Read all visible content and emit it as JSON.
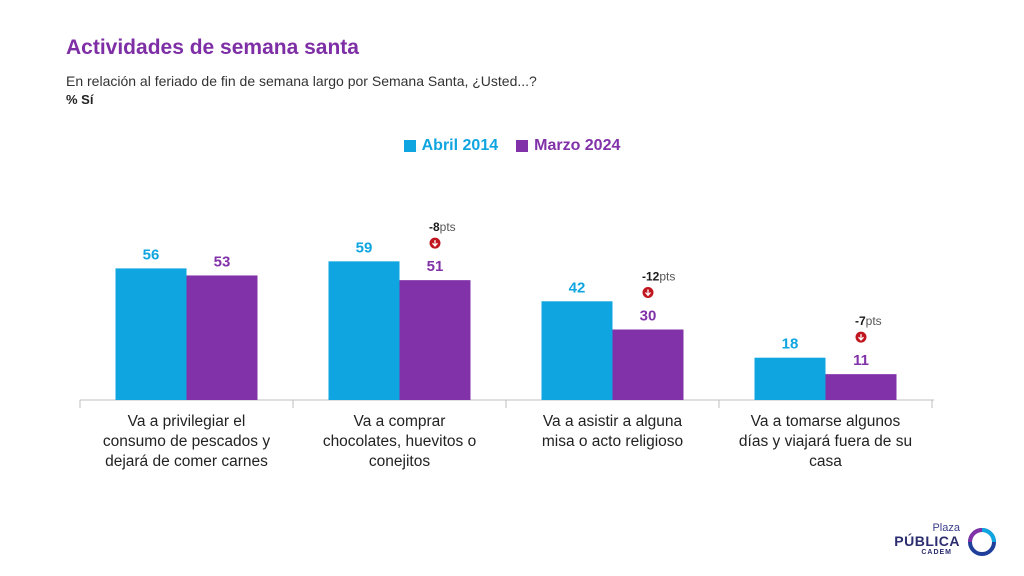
{
  "header": {
    "title": "Actividades de semana santa",
    "subtitle": "En relación al feriado de fin de semana largo por Semana Santa, ¿Usted...?",
    "metric": "% Sí"
  },
  "colors": {
    "series1": "#0ea5e0",
    "series2": "#8132a8",
    "title": "#7e2fa6",
    "delta": "#c0161f"
  },
  "chart_data": {
    "type": "bar",
    "categories": [
      [
        "Va a privilegiar el",
        "consumo de pescados y",
        "dejará de comer carnes"
      ],
      [
        "Va a comprar",
        "chocolates, huevitos o",
        "conejitos"
      ],
      [
        "Va a asistir a alguna",
        "misa o acto religioso"
      ],
      [
        "Va a tomarse algunos",
        "días y viajará fuera de su",
        "casa"
      ]
    ],
    "series": [
      {
        "name": "Abril 2014",
        "values": [
          56,
          59,
          42,
          18
        ]
      },
      {
        "name": "Marzo 2024",
        "values": [
          53,
          51,
          30,
          11
        ]
      }
    ],
    "annotations": [
      {
        "category_index": 1,
        "value": "-8",
        "unit": "pts"
      },
      {
        "category_index": 2,
        "value": "-12",
        "unit": "pts"
      },
      {
        "category_index": 3,
        "value": "-7",
        "unit": "pts"
      }
    ],
    "ylim": [
      0,
      100
    ],
    "grid": false,
    "legend": "top-center"
  },
  "logo": {
    "top": "Plaza",
    "middle": "PÚBLICA",
    "bottom": "CADEM"
  }
}
